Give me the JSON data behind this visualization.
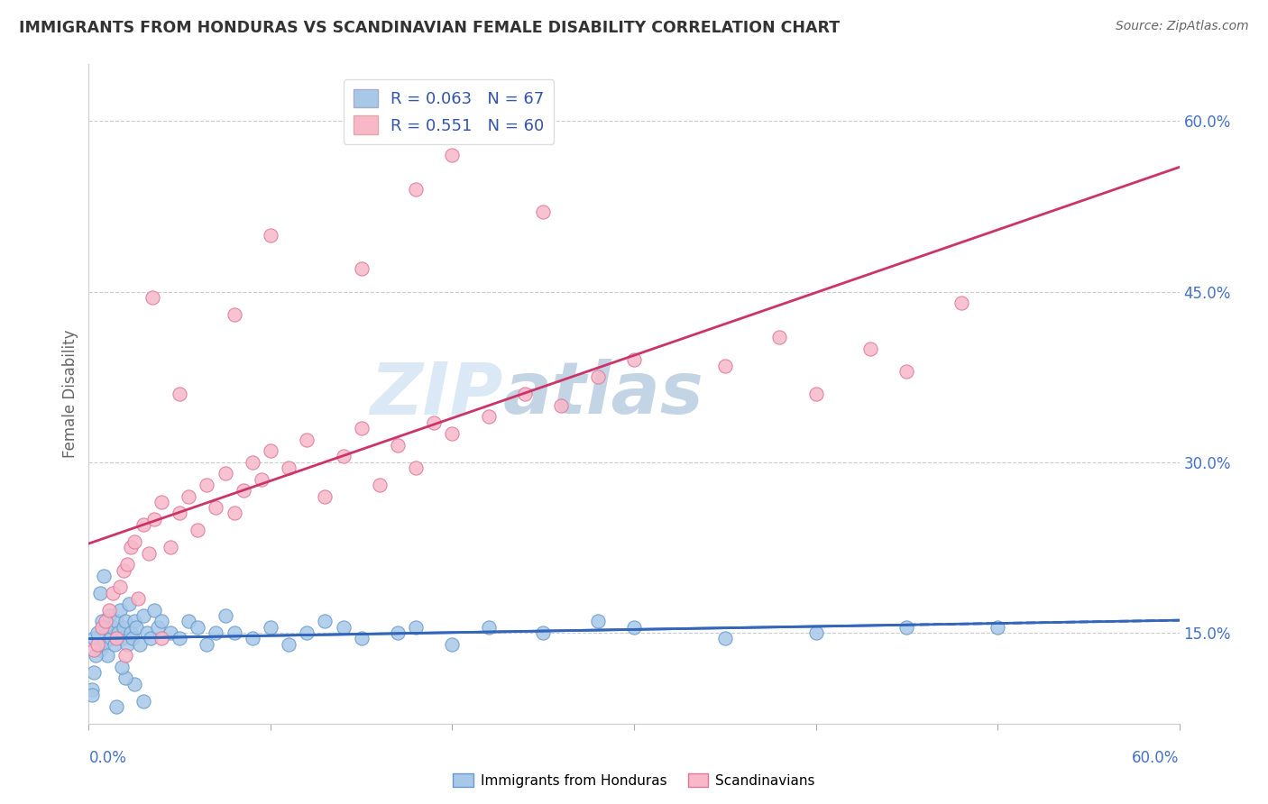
{
  "title": "IMMIGRANTS FROM HONDURAS VS SCANDINAVIAN FEMALE DISABILITY CORRELATION CHART",
  "source": "Source: ZipAtlas.com",
  "ylabel": "Female Disability",
  "xlim": [
    0.0,
    60.0
  ],
  "ylim": [
    7.0,
    65.0
  ],
  "yticks": [
    15.0,
    30.0,
    45.0,
    60.0
  ],
  "xticks": [
    0.0,
    10.0,
    20.0,
    30.0,
    40.0,
    50.0,
    60.0
  ],
  "series1": {
    "label": "Immigrants from Honduras",
    "R": 0.063,
    "N": 67,
    "color": "#a8c8e8",
    "edge_color": "#6699cc",
    "line_color": "#3366bb",
    "x": [
      0.3,
      0.5,
      0.6,
      0.7,
      0.8,
      0.9,
      1.0,
      1.1,
      1.2,
      1.3,
      1.4,
      1.5,
      1.6,
      1.7,
      1.8,
      1.9,
      2.0,
      2.1,
      2.2,
      2.3,
      2.4,
      2.5,
      2.6,
      2.8,
      3.0,
      3.2,
      3.4,
      3.6,
      3.8,
      4.0,
      4.5,
      5.0,
      5.5,
      6.0,
      6.5,
      7.0,
      7.5,
      8.0,
      9.0,
      10.0,
      11.0,
      12.0,
      13.0,
      14.0,
      15.0,
      17.0,
      18.0,
      20.0,
      22.0,
      25.0,
      28.0,
      30.0,
      35.0,
      40.0,
      45.0,
      50.0,
      3.0,
      2.5,
      2.0,
      1.8,
      1.5,
      0.8,
      0.6,
      0.4,
      0.3,
      0.2,
      0.2
    ],
    "y": [
      14.5,
      15.0,
      13.5,
      16.0,
      14.0,
      15.5,
      13.0,
      16.5,
      14.5,
      15.5,
      14.0,
      16.0,
      15.0,
      17.0,
      14.5,
      15.5,
      16.0,
      14.0,
      17.5,
      15.0,
      14.5,
      16.0,
      15.5,
      14.0,
      16.5,
      15.0,
      14.5,
      17.0,
      15.5,
      16.0,
      15.0,
      14.5,
      16.0,
      15.5,
      14.0,
      15.0,
      16.5,
      15.0,
      14.5,
      15.5,
      14.0,
      15.0,
      16.0,
      15.5,
      14.5,
      15.0,
      15.5,
      14.0,
      15.5,
      15.0,
      16.0,
      15.5,
      14.5,
      15.0,
      15.5,
      15.5,
      9.0,
      10.5,
      11.0,
      12.0,
      8.5,
      20.0,
      18.5,
      13.0,
      11.5,
      10.0,
      9.5
    ]
  },
  "series2": {
    "label": "Scandinavians",
    "R": 0.551,
    "N": 60,
    "color": "#f8b8c8",
    "edge_color": "#dd7799",
    "line_color": "#cc3366",
    "x": [
      0.3,
      0.5,
      0.7,
      0.9,
      1.1,
      1.3,
      1.5,
      1.7,
      1.9,
      2.1,
      2.3,
      2.5,
      2.7,
      3.0,
      3.3,
      3.6,
      4.0,
      4.5,
      5.0,
      5.5,
      6.0,
      6.5,
      7.0,
      7.5,
      8.0,
      8.5,
      9.0,
      9.5,
      10.0,
      11.0,
      12.0,
      13.0,
      14.0,
      15.0,
      16.0,
      17.0,
      18.0,
      19.0,
      20.0,
      22.0,
      24.0,
      26.0,
      28.0,
      30.0,
      35.0,
      38.0,
      40.0,
      43.0,
      45.0,
      48.0,
      10.0,
      15.0,
      18.0,
      20.0,
      25.0,
      5.0,
      8.0,
      3.5,
      2.0,
      4.0
    ],
    "y": [
      13.5,
      14.0,
      15.5,
      16.0,
      17.0,
      18.5,
      14.5,
      19.0,
      20.5,
      21.0,
      22.5,
      23.0,
      18.0,
      24.5,
      22.0,
      25.0,
      26.5,
      22.5,
      25.5,
      27.0,
      24.0,
      28.0,
      26.0,
      29.0,
      25.5,
      27.5,
      30.0,
      28.5,
      31.0,
      29.5,
      32.0,
      27.0,
      30.5,
      33.0,
      28.0,
      31.5,
      29.5,
      33.5,
      32.5,
      34.0,
      36.0,
      35.0,
      37.5,
      39.0,
      38.5,
      41.0,
      36.0,
      40.0,
      38.0,
      44.0,
      50.0,
      47.0,
      54.0,
      57.0,
      52.0,
      36.0,
      43.0,
      44.5,
      13.0,
      14.5
    ]
  },
  "background_color": "#ffffff",
  "grid_color": "#cccccc",
  "watermark_color": "#cce0f0",
  "title_color": "#333333",
  "tick_label_color": "#4472c4"
}
